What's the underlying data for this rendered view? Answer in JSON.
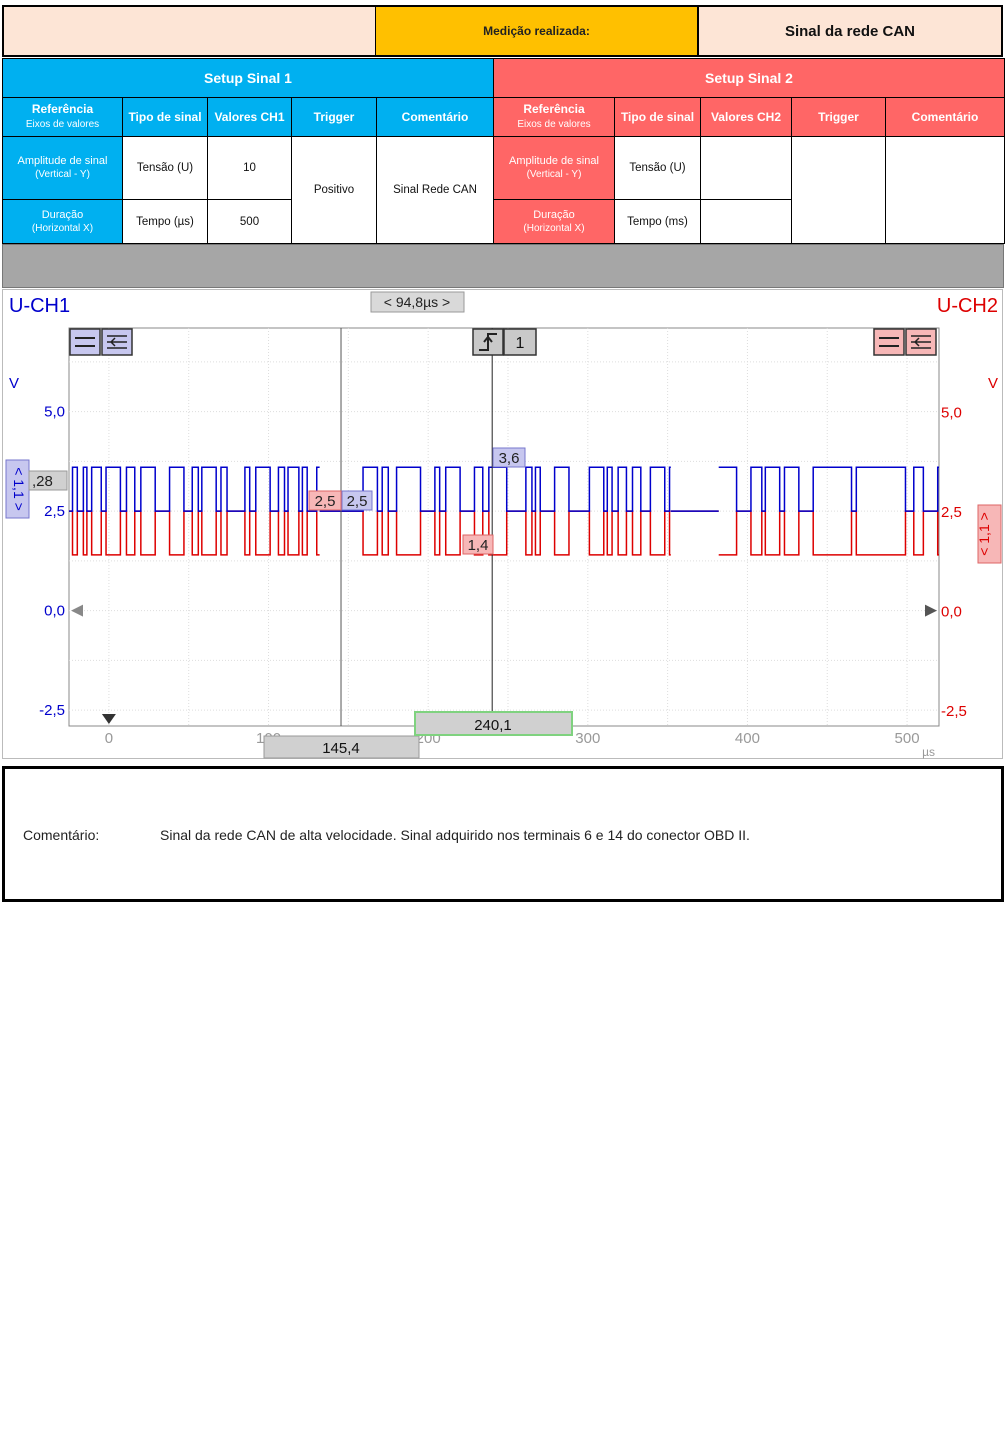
{
  "header": {
    "measure_label": "Medição realizada:",
    "measure_value": "Sinal da rede CAN"
  },
  "setup1": {
    "title": "Setup Sinal 1",
    "col_ref": "Referência",
    "col_ref_sub": "Eixos de valores",
    "col_type": "Tipo de sinal",
    "col_values": "Valores CH1",
    "col_trigger": "Trigger",
    "col_comment": "Comentário",
    "row1_title": "Amplitude de sinal",
    "row1_sub": "(Vertical - Y)",
    "row1_type": "Tensão (U)",
    "row1_value": "10",
    "row2_title": "Duração",
    "row2_sub": "(Horizontal X)",
    "row2_type": "Tempo (µs)",
    "row2_value": "500",
    "trigger": "Positivo",
    "comment": "Sinal Rede CAN"
  },
  "setup2": {
    "title": "Setup Sinal 2",
    "col_ref": "Referência",
    "col_ref_sub": "Eixos de valores",
    "col_type": "Tipo de sinal",
    "col_values": "Valores CH2",
    "col_trigger": "Trigger",
    "col_comment": "Comentário",
    "row1_title": "Amplitude de sinal",
    "row1_sub": "(Vertical - Y)",
    "row1_type": "Tensão (U)",
    "row2_title": "Duração",
    "row2_sub": "(Horizontal X)",
    "row2_type": "Tempo (ms)"
  },
  "colors": {
    "ch1": "#0000cc",
    "ch2": "#dd0000",
    "setup1_bg": "#00b0f0",
    "setup2_bg": "#ff6666",
    "highlight": "#ffc000"
  },
  "chart_data": {
    "type": "line",
    "ch1_label": "U-CH1",
    "ch2_label": "U-CH2",
    "left_unit": "V",
    "right_unit": "V",
    "x_unit": "µs",
    "xlim": [
      -25,
      520
    ],
    "ylim": [
      -2.9,
      7.1
    ],
    "grid": true,
    "x_ticks": [
      "0",
      "100",
      "200",
      "300",
      "400",
      "500"
    ],
    "y_ticks_left": [
      "5,0",
      "2,5",
      "0,0",
      "-2,5"
    ],
    "y_ticks_right": [
      "5,0",
      "2,5",
      "0,0",
      "-2,5"
    ],
    "series": [
      {
        "name": "U-CH1",
        "high_v": 3.6,
        "recessive_v": 2.5
      },
      {
        "name": "U-CH2",
        "low_v": 1.4,
        "recessive_v": 2.5
      }
    ],
    "cursor_delta": "< 94,8µs >",
    "cursor_a_time": "145,4",
    "cursor_b_time": "240,1",
    "cursor_a_us": 145.4,
    "cursor_b_us": 240.1,
    "marker_ch1_a": "2,5",
    "marker_ch2_a": "2,5",
    "marker_ch1_b": "3,6",
    "marker_ch2_b": "1,4",
    "ch1_scale": "1,1",
    "ch2_scale": "1,1",
    "ch1_offset_label": ",28",
    "trigger_channel": "1"
  },
  "comment": {
    "label": "Comentário:",
    "text": "Sinal da rede CAN de alta velocidade. Sinal adquirido nos terminais 6 e 14 do conector OBD II."
  }
}
